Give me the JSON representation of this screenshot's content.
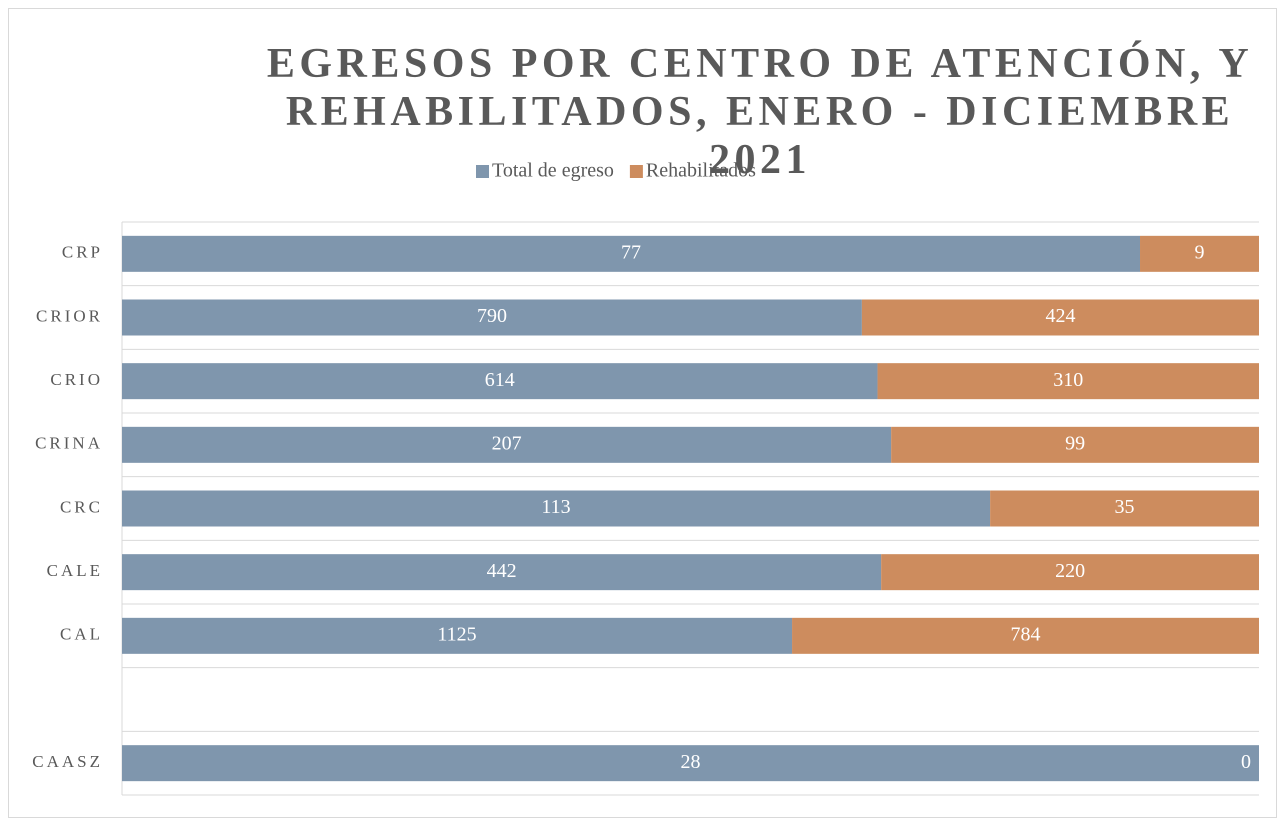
{
  "chart_data": {
    "type": "bar",
    "orientation": "horizontal",
    "stacked": "percent",
    "title": "EGRESOS POR CENTRO DE ATENCIÓN, Y REHABILITADOS, ENERO - DICIEMBRE 2021",
    "categories": [
      "CRP",
      "CRIOR",
      "CRIO",
      "CRINA",
      "CRC",
      "CALE",
      "CAL",
      null,
      "CAASZ"
    ],
    "series": [
      {
        "name": "Total de egreso",
        "color": "#7f96ad",
        "values": [
          77,
          790,
          614,
          207,
          113,
          442,
          1125,
          null,
          28
        ]
      },
      {
        "name": "Rehabilitados",
        "color": "#cd8c5e",
        "values": [
          9,
          424,
          310,
          99,
          35,
          220,
          784,
          null,
          0
        ]
      }
    ],
    "legend": "top",
    "grid": true
  }
}
